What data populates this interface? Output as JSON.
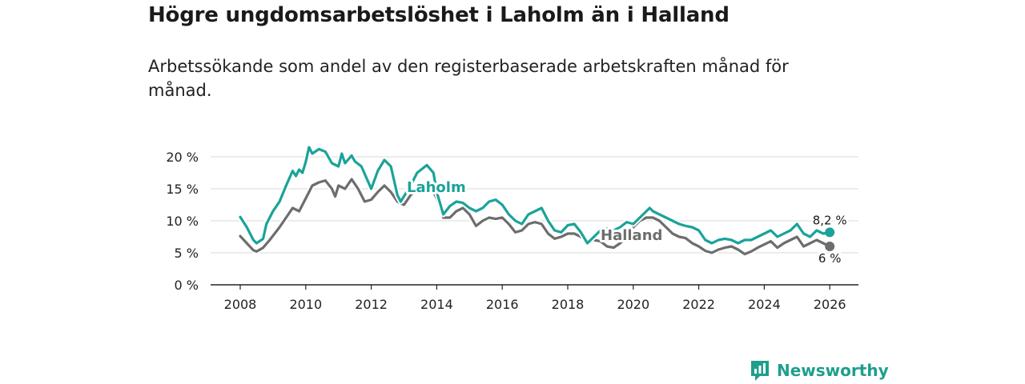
{
  "header": {
    "title": "Högre ungdomsarbetslöshet i Laholm än i Halland",
    "subtitle": "Arbetssökande som andel av den registerbaserade arbetskraften månad för månad."
  },
  "brand": {
    "name": "Newsworthy",
    "color": "#1f9e8d"
  },
  "chart_data": {
    "type": "line",
    "title": "Högre ungdomsarbetslöshet i Laholm än i Halland",
    "subtitle": "Arbetssökande som andel av den registerbaserade arbetskraften månad för månad.",
    "xlabel": "",
    "ylabel": "",
    "xlim": [
      2007.5,
      2026.5
    ],
    "ylim": [
      0,
      20
    ],
    "x_ticks": [
      2008,
      2010,
      2012,
      2014,
      2016,
      2018,
      2020,
      2022,
      2024,
      2026
    ],
    "y_ticks": [
      0,
      5,
      10,
      15,
      20
    ],
    "y_tick_labels": [
      "0 %",
      "5 %",
      "10 %",
      "15 %",
      "20 %"
    ],
    "grid": true,
    "series": [
      {
        "name": "Laholm",
        "label": "Laholm",
        "color": "#1aa39a",
        "end_label": "8,2 %",
        "points": [
          [
            2008.0,
            10.6
          ],
          [
            2008.2,
            9.0
          ],
          [
            2008.4,
            7.0
          ],
          [
            2008.5,
            6.5
          ],
          [
            2008.7,
            7.2
          ],
          [
            2008.8,
            9.5
          ],
          [
            2009.0,
            11.5
          ],
          [
            2009.2,
            13.0
          ],
          [
            2009.4,
            15.5
          ],
          [
            2009.6,
            17.8
          ],
          [
            2009.7,
            17.0
          ],
          [
            2009.8,
            18.0
          ],
          [
            2009.9,
            17.5
          ],
          [
            2010.0,
            19.2
          ],
          [
            2010.1,
            21.5
          ],
          [
            2010.2,
            20.5
          ],
          [
            2010.4,
            21.2
          ],
          [
            2010.6,
            20.8
          ],
          [
            2010.8,
            19.0
          ],
          [
            2011.0,
            18.5
          ],
          [
            2011.1,
            20.5
          ],
          [
            2011.2,
            19.0
          ],
          [
            2011.4,
            20.2
          ],
          [
            2011.5,
            19.3
          ],
          [
            2011.7,
            18.5
          ],
          [
            2012.0,
            15.0
          ],
          [
            2012.2,
            17.8
          ],
          [
            2012.4,
            19.5
          ],
          [
            2012.6,
            18.5
          ],
          [
            2012.8,
            14.0
          ],
          [
            2012.9,
            13.0
          ],
          [
            2013.2,
            15.5
          ],
          [
            2013.4,
            17.5
          ],
          [
            2013.7,
            18.7
          ],
          [
            2013.9,
            17.5
          ],
          [
            2014.0,
            14.5
          ],
          [
            2014.2,
            11.0
          ],
          [
            2014.4,
            12.3
          ],
          [
            2014.6,
            13.0
          ],
          [
            2014.8,
            12.8
          ],
          [
            2015.0,
            12.0
          ],
          [
            2015.2,
            11.5
          ],
          [
            2015.4,
            12.0
          ],
          [
            2015.6,
            13.0
          ],
          [
            2015.8,
            13.3
          ],
          [
            2016.0,
            12.5
          ],
          [
            2016.2,
            11.0
          ],
          [
            2016.4,
            10.0
          ],
          [
            2016.6,
            9.5
          ],
          [
            2016.8,
            11.0
          ],
          [
            2017.0,
            11.5
          ],
          [
            2017.2,
            12.0
          ],
          [
            2017.4,
            10.0
          ],
          [
            2017.6,
            8.5
          ],
          [
            2017.8,
            8.2
          ],
          [
            2018.0,
            9.3
          ],
          [
            2018.2,
            9.5
          ],
          [
            2018.4,
            8.2
          ],
          [
            2018.6,
            6.5
          ],
          [
            2018.8,
            7.5
          ],
          [
            2019.0,
            8.5
          ],
          [
            2019.2,
            8.8
          ],
          [
            2019.4,
            8.5
          ],
          [
            2019.6,
            9.0
          ],
          [
            2019.8,
            9.8
          ],
          [
            2020.0,
            9.5
          ],
          [
            2020.2,
            10.5
          ],
          [
            2020.4,
            11.5
          ],
          [
            2020.5,
            12.0
          ],
          [
            2020.6,
            11.5
          ],
          [
            2020.8,
            11.0
          ],
          [
            2021.0,
            10.5
          ],
          [
            2021.2,
            10.0
          ],
          [
            2021.4,
            9.5
          ],
          [
            2021.6,
            9.2
          ],
          [
            2021.8,
            9.0
          ],
          [
            2022.0,
            8.5
          ],
          [
            2022.2,
            7.0
          ],
          [
            2022.4,
            6.5
          ],
          [
            2022.6,
            7.0
          ],
          [
            2022.8,
            7.2
          ],
          [
            2023.0,
            7.0
          ],
          [
            2023.2,
            6.5
          ],
          [
            2023.4,
            7.0
          ],
          [
            2023.6,
            7.0
          ],
          [
            2023.8,
            7.5
          ],
          [
            2024.0,
            8.0
          ],
          [
            2024.2,
            8.5
          ],
          [
            2024.4,
            7.5
          ],
          [
            2024.6,
            8.0
          ],
          [
            2024.8,
            8.5
          ],
          [
            2025.0,
            9.5
          ],
          [
            2025.2,
            8.0
          ],
          [
            2025.4,
            7.5
          ],
          [
            2025.6,
            8.5
          ],
          [
            2025.8,
            8.0
          ],
          [
            2026.0,
            8.2
          ]
        ]
      },
      {
        "name": "Halland",
        "label": "Halland",
        "color": "#6d6d6d",
        "end_label": "6 %",
        "points": [
          [
            2008.0,
            7.6
          ],
          [
            2008.2,
            6.5
          ],
          [
            2008.4,
            5.4
          ],
          [
            2008.5,
            5.2
          ],
          [
            2008.7,
            5.8
          ],
          [
            2008.9,
            7.0
          ],
          [
            2009.2,
            9.0
          ],
          [
            2009.4,
            10.5
          ],
          [
            2009.6,
            12.0
          ],
          [
            2009.8,
            11.5
          ],
          [
            2010.0,
            13.5
          ],
          [
            2010.2,
            15.5
          ],
          [
            2010.4,
            16.0
          ],
          [
            2010.6,
            16.3
          ],
          [
            2010.8,
            15.0
          ],
          [
            2010.9,
            13.8
          ],
          [
            2011.0,
            15.5
          ],
          [
            2011.2,
            15.0
          ],
          [
            2011.4,
            16.5
          ],
          [
            2011.6,
            15.0
          ],
          [
            2011.8,
            13.0
          ],
          [
            2012.0,
            13.3
          ],
          [
            2012.2,
            14.5
          ],
          [
            2012.4,
            15.5
          ],
          [
            2012.6,
            14.5
          ],
          [
            2012.8,
            13.0
          ],
          [
            2013.0,
            12.5
          ],
          [
            2013.2,
            14.0
          ],
          [
            2013.5,
            15.5
          ],
          [
            2013.7,
            16.0
          ],
          [
            2013.9,
            14.5
          ],
          [
            2014.0,
            13.5
          ],
          [
            2014.2,
            10.5
          ],
          [
            2014.4,
            10.5
          ],
          [
            2014.6,
            11.5
          ],
          [
            2014.8,
            12.0
          ],
          [
            2015.0,
            11.0
          ],
          [
            2015.2,
            9.2
          ],
          [
            2015.4,
            10.0
          ],
          [
            2015.6,
            10.5
          ],
          [
            2015.8,
            10.3
          ],
          [
            2016.0,
            10.5
          ],
          [
            2016.2,
            9.5
          ],
          [
            2016.4,
            8.2
          ],
          [
            2016.6,
            8.5
          ],
          [
            2016.8,
            9.5
          ],
          [
            2017.0,
            9.8
          ],
          [
            2017.2,
            9.5
          ],
          [
            2017.4,
            8.0
          ],
          [
            2017.6,
            7.2
          ],
          [
            2017.8,
            7.5
          ],
          [
            2018.0,
            8.0
          ],
          [
            2018.2,
            8.0
          ],
          [
            2018.4,
            7.5
          ],
          [
            2018.6,
            6.8
          ],
          [
            2018.8,
            7.0
          ],
          [
            2019.0,
            6.8
          ],
          [
            2019.2,
            6.0
          ],
          [
            2019.4,
            5.8
          ],
          [
            2019.6,
            6.5
          ],
          [
            2019.8,
            7.5
          ],
          [
            2020.0,
            9.0
          ],
          [
            2020.2,
            10.0
          ],
          [
            2020.4,
            10.5
          ],
          [
            2020.6,
            10.5
          ],
          [
            2020.8,
            10.0
          ],
          [
            2021.0,
            9.0
          ],
          [
            2021.2,
            8.0
          ],
          [
            2021.4,
            7.5
          ],
          [
            2021.6,
            7.3
          ],
          [
            2021.8,
            6.5
          ],
          [
            2022.0,
            6.0
          ],
          [
            2022.2,
            5.3
          ],
          [
            2022.4,
            5.0
          ],
          [
            2022.6,
            5.5
          ],
          [
            2022.8,
            5.8
          ],
          [
            2023.0,
            6.0
          ],
          [
            2023.2,
            5.5
          ],
          [
            2023.4,
            4.8
          ],
          [
            2023.6,
            5.2
          ],
          [
            2023.8,
            5.8
          ],
          [
            2024.0,
            6.3
          ],
          [
            2024.2,
            6.8
          ],
          [
            2024.4,
            5.8
          ],
          [
            2024.6,
            6.5
          ],
          [
            2024.8,
            7.0
          ],
          [
            2025.0,
            7.5
          ],
          [
            2025.2,
            6.0
          ],
          [
            2025.4,
            6.5
          ],
          [
            2025.6,
            7.0
          ],
          [
            2025.8,
            6.5
          ],
          [
            2026.0,
            6.0
          ]
        ]
      }
    ]
  }
}
